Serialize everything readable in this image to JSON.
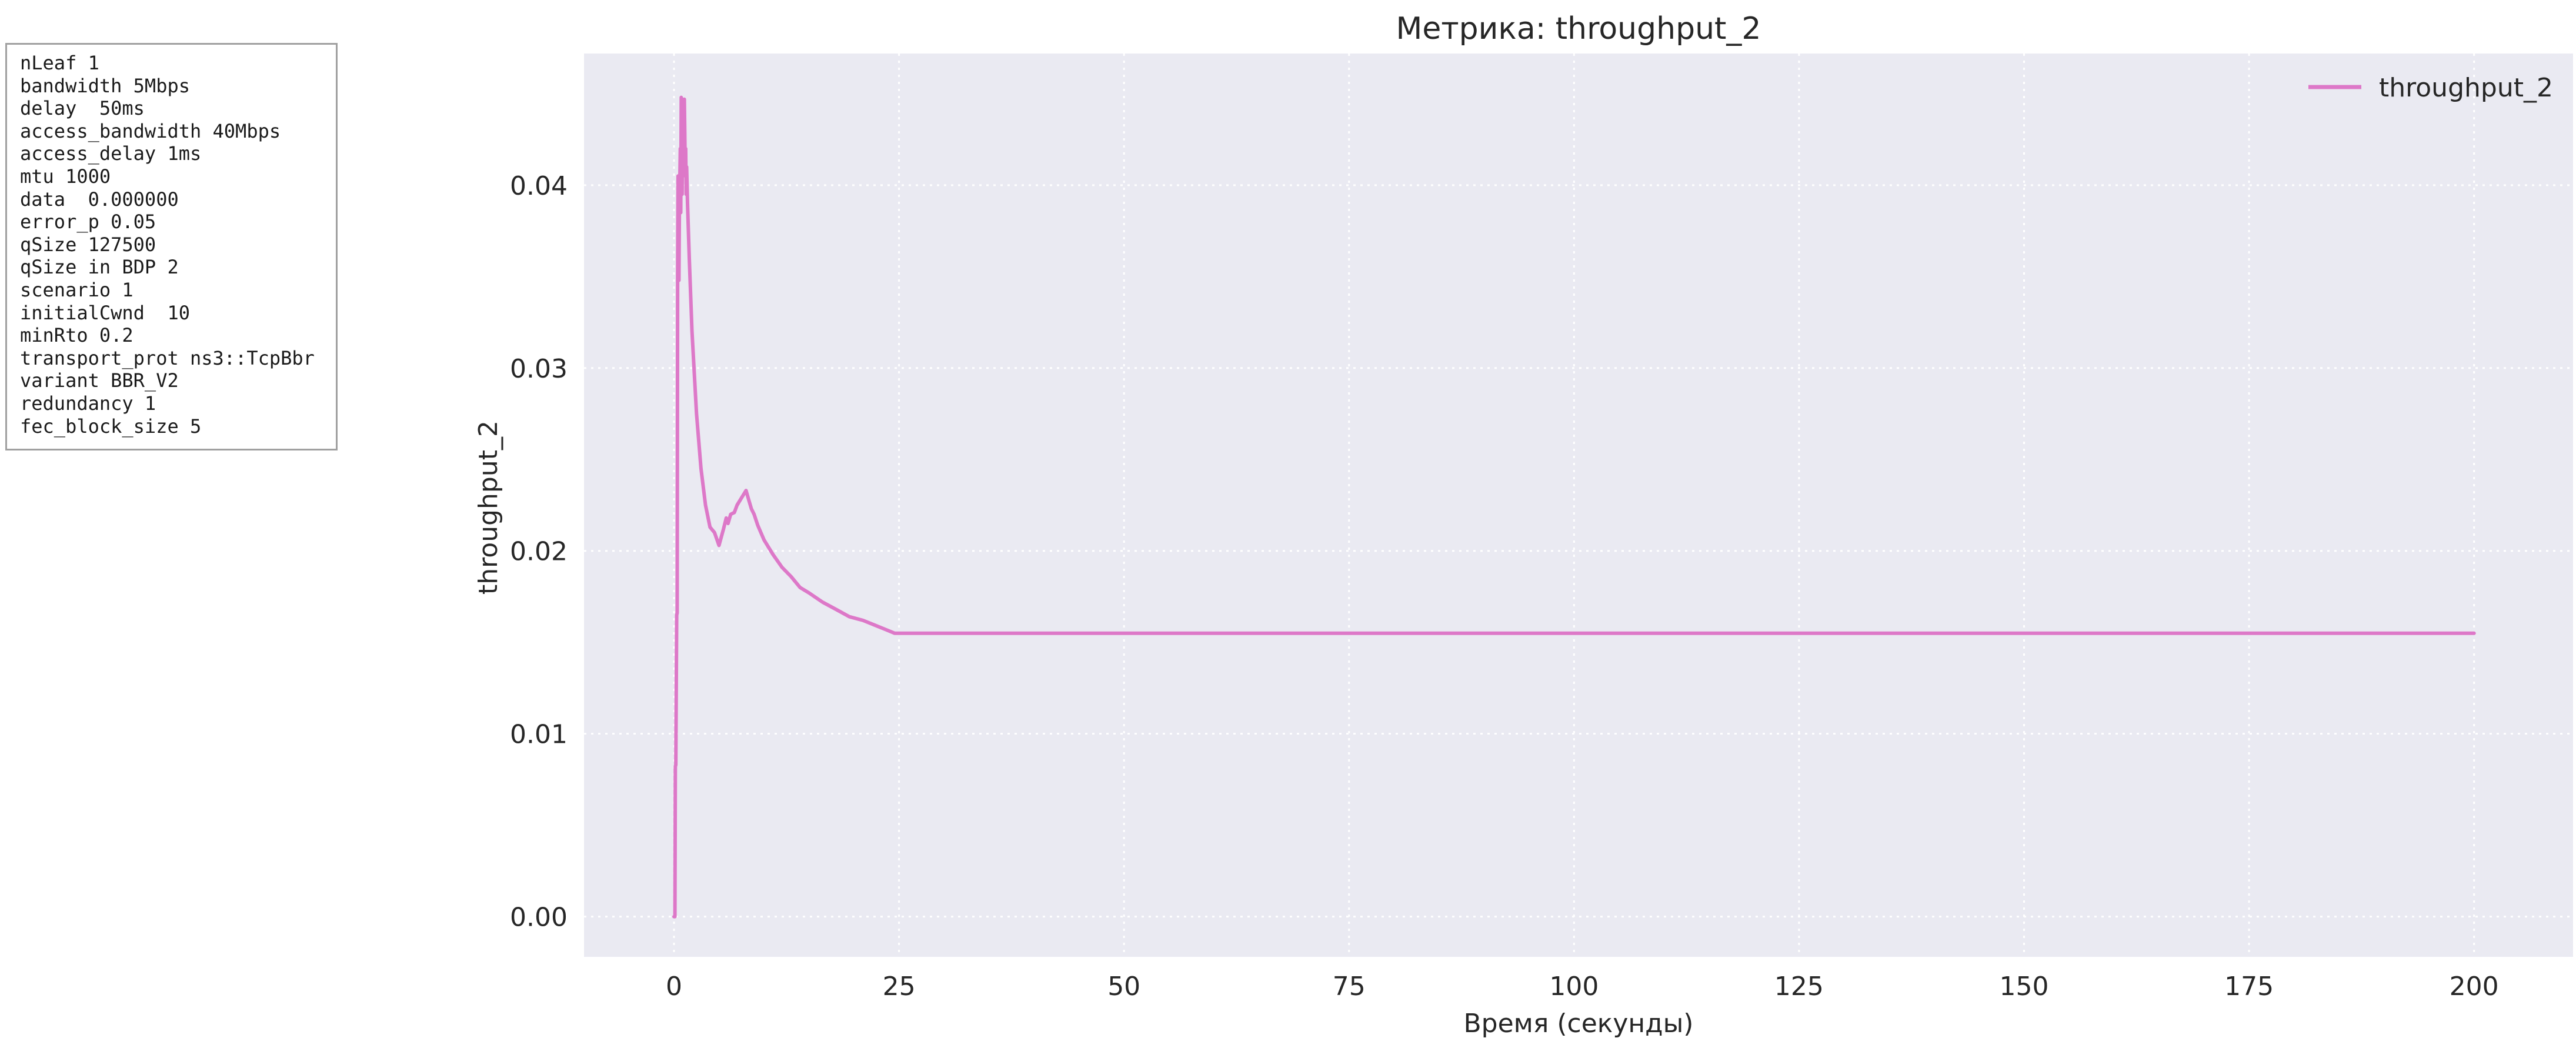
{
  "param_lines": [
    "nLeaf 1",
    "bandwidth 5Mbps",
    "delay  50ms",
    "access_bandwidth 40Mbps",
    "access_delay 1ms",
    "mtu 1000",
    "data  0.000000",
    "error_p 0.05",
    "qSize 127500",
    "qSize in BDP 2",
    "scenario 1",
    "initialCwnd  10",
    "minRto 0.2",
    "transport_prot ns3::TcpBbr",
    "variant BBR_V2",
    "redundancy 1",
    "fec_block_size 5"
  ],
  "chart_data": {
    "type": "line",
    "title": "Метрика: throughput_2",
    "xlabel": "Время (секунды)",
    "ylabel": "throughput_2",
    "xlim": [
      -10,
      211
    ],
    "ylim": [
      -0.0022,
      0.0472
    ],
    "xticks": [
      0,
      25,
      50,
      75,
      100,
      125,
      150,
      175,
      200
    ],
    "xtick_labels": [
      "0",
      "25",
      "50",
      "75",
      "100",
      "125",
      "150",
      "175",
      "200"
    ],
    "yticks": [
      0.0,
      0.01,
      0.02,
      0.03,
      0.04
    ],
    "ytick_labels": [
      "0.00",
      "0.01",
      "0.02",
      "0.03",
      "0.04"
    ],
    "grid": true,
    "legend_position": "top-right",
    "background_color": "#eaeaf2",
    "series": [
      {
        "name": "throughput_2",
        "color": "#dd78c8",
        "x": [
          0.0,
          0.1,
          0.15,
          0.2,
          0.3,
          0.35,
          0.4,
          0.45,
          0.5,
          0.55,
          0.6,
          0.65,
          0.7,
          0.75,
          0.8,
          0.85,
          0.9,
          0.95,
          1.0,
          1.05,
          1.1,
          1.15,
          1.2,
          1.25,
          1.3,
          1.35,
          1.4,
          1.5,
          1.7,
          2.0,
          2.5,
          3.0,
          3.5,
          4.0,
          4.5,
          5.0,
          5.5,
          5.8,
          6.0,
          6.3,
          6.7,
          7.0,
          7.5,
          8.0,
          8.3,
          8.6,
          8.9,
          9.3,
          10.0,
          11.0,
          12.0,
          13.0,
          14.0,
          15.0,
          16.5,
          18.0,
          19.5,
          21.0,
          22.5,
          23.5,
          24.5,
          30.0,
          50.0,
          100.0,
          150.0,
          200.0
        ],
        "y": [
          0.0,
          0.0,
          0.0082,
          0.0083,
          0.0165,
          0.0166,
          0.035,
          0.0405,
          0.037,
          0.0348,
          0.0388,
          0.0405,
          0.042,
          0.0385,
          0.0448,
          0.043,
          0.0395,
          0.0447,
          0.042,
          0.0446,
          0.0415,
          0.0447,
          0.0428,
          0.0405,
          0.042,
          0.0395,
          0.041,
          0.039,
          0.036,
          0.032,
          0.0275,
          0.0245,
          0.0225,
          0.0213,
          0.021,
          0.0203,
          0.0212,
          0.0218,
          0.0215,
          0.022,
          0.0221,
          0.0225,
          0.0229,
          0.0233,
          0.0228,
          0.0223,
          0.022,
          0.0214,
          0.0206,
          0.0198,
          0.0191,
          0.0186,
          0.018,
          0.0177,
          0.0172,
          0.0168,
          0.0164,
          0.0162,
          0.0159,
          0.0157,
          0.0155,
          0.0155,
          0.0155,
          0.0155,
          0.0155,
          0.0155
        ]
      }
    ]
  }
}
